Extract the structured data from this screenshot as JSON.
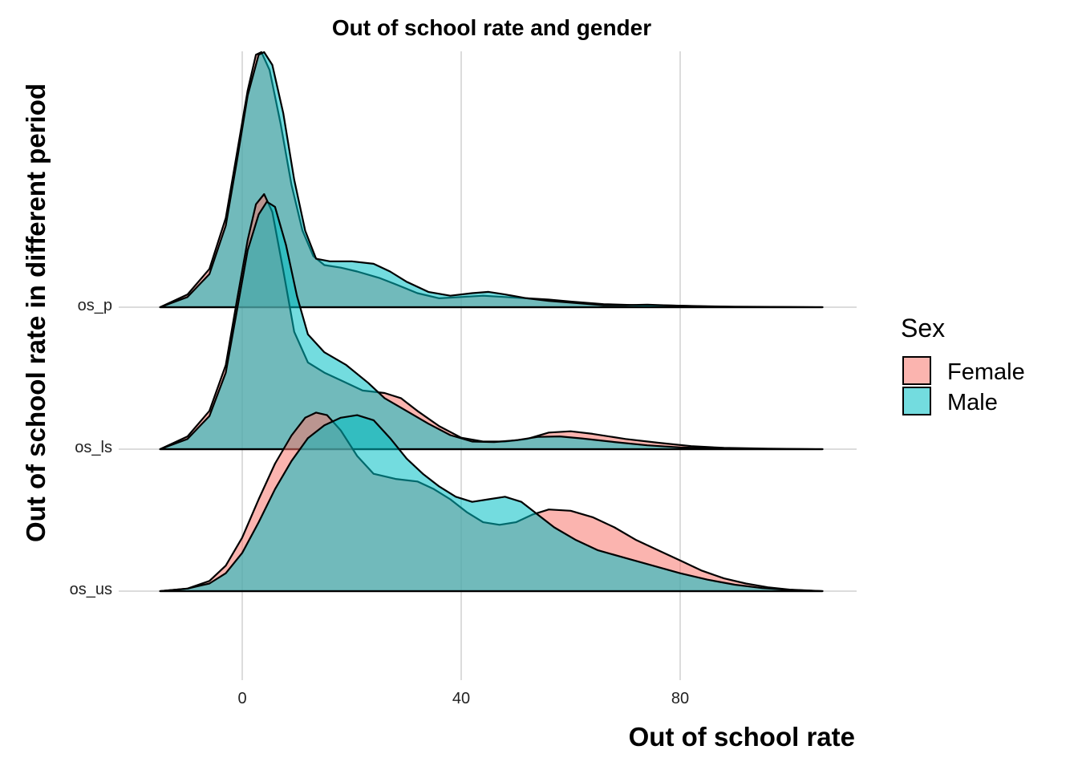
{
  "chart_data": {
    "type": "ridgeline",
    "title": "Out of school rate and gender",
    "xlabel": "Out of school rate",
    "ylabel": "Out of school rate in different period",
    "x_ticks": [
      0,
      40,
      80
    ],
    "xlim": [
      -20,
      108
    ],
    "grid": true,
    "legend": {
      "title": "Sex",
      "position": "right",
      "entries": [
        {
          "name": "Female",
          "color": "#F8766D"
        },
        {
          "name": "Male",
          "color": "#00BFC4"
        }
      ]
    },
    "categories": [
      "os_p",
      "os_ls",
      "os_us"
    ],
    "ridges": [
      {
        "category": "os_p",
        "series": [
          {
            "name": "Female",
            "points": [
              [
                -15,
                0
              ],
              [
                -10,
                0.05
              ],
              [
                -6,
                0.15
              ],
              [
                -3,
                0.35
              ],
              [
                -1,
                0.6
              ],
              [
                1,
                0.85
              ],
              [
                2.5,
                0.99
              ],
              [
                3.5,
                1.0
              ],
              [
                5,
                0.93
              ],
              [
                7,
                0.72
              ],
              [
                9,
                0.48
              ],
              [
                11,
                0.3
              ],
              [
                13,
                0.2
              ],
              [
                15,
                0.165
              ],
              [
                18,
                0.155
              ],
              [
                21,
                0.14
              ],
              [
                25,
                0.115
              ],
              [
                28,
                0.09
              ],
              [
                32,
                0.055
              ],
              [
                36,
                0.035
              ],
              [
                40,
                0.04
              ],
              [
                44,
                0.045
              ],
              [
                48,
                0.04
              ],
              [
                52,
                0.035
              ],
              [
                56,
                0.03
              ],
              [
                60,
                0.022
              ],
              [
                66,
                0.012
              ],
              [
                72,
                0.008
              ],
              [
                78,
                0.007
              ],
              [
                84,
                0.004
              ],
              [
                90,
                0.002
              ],
              [
                100,
                0.001
              ],
              [
                106,
                0
              ]
            ]
          },
          {
            "name": "Male",
            "points": [
              [
                -15,
                0
              ],
              [
                -10,
                0.04
              ],
              [
                -6,
                0.13
              ],
              [
                -3,
                0.32
              ],
              [
                -1,
                0.57
              ],
              [
                1,
                0.83
              ],
              [
                3,
                0.99
              ],
              [
                4,
                1.0
              ],
              [
                5.5,
                0.95
              ],
              [
                7.5,
                0.76
              ],
              [
                9.5,
                0.5
              ],
              [
                11.5,
                0.3
              ],
              [
                13.5,
                0.19
              ],
              [
                16,
                0.18
              ],
              [
                20,
                0.18
              ],
              [
                24,
                0.17
              ],
              [
                27,
                0.14
              ],
              [
                30,
                0.1
              ],
              [
                34,
                0.06
              ],
              [
                38,
                0.045
              ],
              [
                42,
                0.055
              ],
              [
                45,
                0.06
              ],
              [
                48,
                0.05
              ],
              [
                52,
                0.035
              ],
              [
                56,
                0.025
              ],
              [
                60,
                0.018
              ],
              [
                66,
                0.008
              ],
              [
                70,
                0.008
              ],
              [
                74,
                0.01
              ],
              [
                78,
                0.007
              ],
              [
                84,
                0.003
              ],
              [
                90,
                0.001
              ],
              [
                106,
                0
              ]
            ]
          }
        ]
      },
      {
        "category": "os_ls",
        "series": [
          {
            "name": "Female",
            "points": [
              [
                -15,
                0
              ],
              [
                -10,
                0.05
              ],
              [
                -6,
                0.15
              ],
              [
                -3,
                0.33
              ],
              [
                -1,
                0.58
              ],
              [
                1,
                0.82
              ],
              [
                2.5,
                0.96
              ],
              [
                4,
                1.0
              ],
              [
                5.5,
                0.93
              ],
              [
                7.5,
                0.7
              ],
              [
                9.5,
                0.46
              ],
              [
                12,
                0.34
              ],
              [
                15,
                0.3
              ],
              [
                18,
                0.27
              ],
              [
                22,
                0.23
              ],
              [
                26,
                0.22
              ],
              [
                29,
                0.2
              ],
              [
                32,
                0.15
              ],
              [
                36,
                0.09
              ],
              [
                40,
                0.045
              ],
              [
                44,
                0.03
              ],
              [
                48,
                0.03
              ],
              [
                52,
                0.04
              ],
              [
                56,
                0.065
              ],
              [
                60,
                0.07
              ],
              [
                64,
                0.06
              ],
              [
                70,
                0.04
              ],
              [
                76,
                0.025
              ],
              [
                82,
                0.012
              ],
              [
                88,
                0.005
              ],
              [
                96,
                0.002
              ],
              [
                106,
                0
              ]
            ]
          },
          {
            "name": "Male",
            "points": [
              [
                -15,
                0
              ],
              [
                -10,
                0.04
              ],
              [
                -6,
                0.13
              ],
              [
                -3,
                0.3
              ],
              [
                -1,
                0.54
              ],
              [
                1,
                0.78
              ],
              [
                3,
                0.92
              ],
              [
                4.5,
                0.97
              ],
              [
                6,
                0.95
              ],
              [
                8,
                0.8
              ],
              [
                10,
                0.6
              ],
              [
                12,
                0.45
              ],
              [
                15,
                0.38
              ],
              [
                19,
                0.33
              ],
              [
                23,
                0.26
              ],
              [
                26,
                0.2
              ],
              [
                30,
                0.15
              ],
              [
                34,
                0.1
              ],
              [
                38,
                0.055
              ],
              [
                42,
                0.03
              ],
              [
                46,
                0.028
              ],
              [
                50,
                0.035
              ],
              [
                54,
                0.048
              ],
              [
                58,
                0.05
              ],
              [
                62,
                0.042
              ],
              [
                68,
                0.028
              ],
              [
                74,
                0.015
              ],
              [
                80,
                0.007
              ],
              [
                86,
                0.003
              ],
              [
                95,
                0.001
              ],
              [
                106,
                0
              ]
            ]
          }
        ]
      },
      {
        "category": "os_us",
        "series": [
          {
            "name": "Female",
            "points": [
              [
                -15,
                0
              ],
              [
                -10,
                0.01
              ],
              [
                -6,
                0.04
              ],
              [
                -3,
                0.1
              ],
              [
                0,
                0.21
              ],
              [
                3,
                0.36
              ],
              [
                6,
                0.5
              ],
              [
                9,
                0.61
              ],
              [
                11.5,
                0.68
              ],
              [
                13.5,
                0.7
              ],
              [
                15.5,
                0.69
              ],
              [
                18,
                0.63
              ],
              [
                21,
                0.53
              ],
              [
                24,
                0.46
              ],
              [
                28,
                0.44
              ],
              [
                32,
                0.43
              ],
              [
                35,
                0.4
              ],
              [
                38,
                0.36
              ],
              [
                41,
                0.31
              ],
              [
                44,
                0.27
              ],
              [
                47,
                0.26
              ],
              [
                50,
                0.27
              ],
              [
                53,
                0.3
              ],
              [
                56,
                0.32
              ],
              [
                60,
                0.315
              ],
              [
                64,
                0.29
              ],
              [
                68,
                0.25
              ],
              [
                72,
                0.2
              ],
              [
                76,
                0.16
              ],
              [
                80,
                0.12
              ],
              [
                84,
                0.08
              ],
              [
                88,
                0.05
              ],
              [
                92,
                0.03
              ],
              [
                96,
                0.015
              ],
              [
                100,
                0.006
              ],
              [
                106,
                0
              ]
            ]
          },
          {
            "name": "Male",
            "points": [
              [
                -15,
                0
              ],
              [
                -10,
                0.01
              ],
              [
                -6,
                0.03
              ],
              [
                -3,
                0.07
              ],
              [
                0,
                0.15
              ],
              [
                3,
                0.27
              ],
              [
                6,
                0.4
              ],
              [
                9,
                0.51
              ],
              [
                12,
                0.6
              ],
              [
                15,
                0.65
              ],
              [
                18,
                0.68
              ],
              [
                21,
                0.69
              ],
              [
                24,
                0.67
              ],
              [
                27,
                0.6
              ],
              [
                30,
                0.52
              ],
              [
                33,
                0.46
              ],
              [
                36,
                0.41
              ],
              [
                39,
                0.37
              ],
              [
                42,
                0.35
              ],
              [
                45,
                0.36
              ],
              [
                48,
                0.37
              ],
              [
                51,
                0.35
              ],
              [
                54,
                0.3
              ],
              [
                57,
                0.25
              ],
              [
                61,
                0.2
              ],
              [
                65,
                0.16
              ],
              [
                70,
                0.13
              ],
              [
                75,
                0.1
              ],
              [
                80,
                0.07
              ],
              [
                85,
                0.045
              ],
              [
                90,
                0.025
              ],
              [
                95,
                0.012
              ],
              [
                100,
                0.005
              ],
              [
                106,
                0
              ]
            ]
          }
        ]
      }
    ]
  }
}
